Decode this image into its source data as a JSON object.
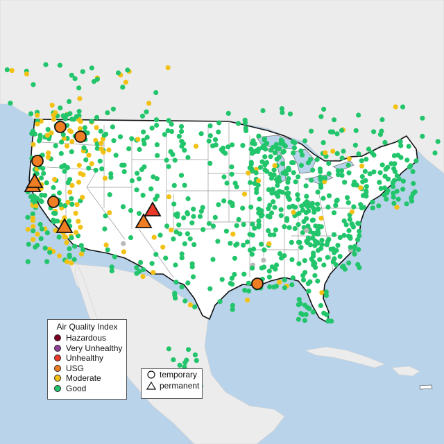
{
  "colors": {
    "hazardous": "#7e0023",
    "very_unhealthy": "#8f3f97",
    "unhealthy": "#e8392a",
    "usg": "#ee7d23",
    "moderate": "#f2c114",
    "good": "#22c56b",
    "no_data": "#b9b9b9",
    "water": "#b9d3ea",
    "land": "#ececec",
    "us_land": "#ffffff"
  },
  "legend_aqi": {
    "title": "Air Quality Index",
    "items": [
      {
        "key": "hazardous",
        "label": "Hazardous"
      },
      {
        "key": "very_unhealthy",
        "label": "Very Unhealthy"
      },
      {
        "key": "unhealthy",
        "label": "Unhealthy"
      },
      {
        "key": "usg",
        "label": "USG"
      },
      {
        "key": "moderate",
        "label": "Moderate"
      },
      {
        "key": "good",
        "label": "Good"
      }
    ]
  },
  "legend_type": {
    "items": [
      {
        "key": "temporary",
        "label": "temporary",
        "icon": "circle-icon"
      },
      {
        "key": "permanent",
        "label": "permanent",
        "icon": "triangle-icon"
      }
    ]
  },
  "map": {
    "subject": "Air quality monitors across the contiguous United States",
    "large_markers": [
      {
        "category": "usg",
        "type": "temporary",
        "region": "northern Idaho"
      },
      {
        "category": "usg",
        "type": "temporary",
        "region": "northern Idaho"
      },
      {
        "category": "usg",
        "type": "temporary",
        "region": "Oregon"
      },
      {
        "category": "usg",
        "type": "permanent",
        "region": "northern California"
      },
      {
        "category": "usg",
        "type": "permanent",
        "region": "northern California"
      },
      {
        "category": "usg",
        "type": "temporary",
        "region": "California/Nevada"
      },
      {
        "category": "usg",
        "type": "permanent",
        "region": "Nevada"
      },
      {
        "category": "unhealthy",
        "type": "permanent",
        "region": "Colorado"
      },
      {
        "category": "usg",
        "type": "permanent",
        "region": "Colorado"
      },
      {
        "category": "usg",
        "type": "temporary",
        "region": "Louisiana"
      }
    ]
  }
}
